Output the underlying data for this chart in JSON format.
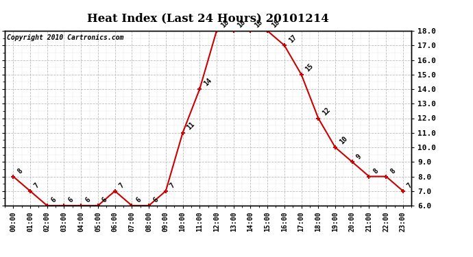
{
  "title": "Heat Index (Last 24 Hours) 20101214",
  "copyright": "Copyright 2010 Cartronics.com",
  "hours": [
    "00:00",
    "01:00",
    "02:00",
    "03:00",
    "04:00",
    "05:00",
    "06:00",
    "07:00",
    "08:00",
    "09:00",
    "10:00",
    "11:00",
    "12:00",
    "13:00",
    "14:00",
    "15:00",
    "16:00",
    "17:00",
    "18:00",
    "19:00",
    "20:00",
    "21:00",
    "22:00",
    "23:00"
  ],
  "values": [
    8,
    7,
    6,
    6,
    6,
    6,
    7,
    6,
    6,
    7,
    11,
    14,
    18,
    18,
    18,
    18,
    17,
    15,
    12,
    10,
    9,
    8,
    8,
    7
  ],
  "ylim": [
    6.0,
    18.0
  ],
  "yticks": [
    6.0,
    7.0,
    8.0,
    9.0,
    10.0,
    11.0,
    12.0,
    13.0,
    14.0,
    15.0,
    16.0,
    17.0,
    18.0
  ],
  "line_color": "#cc0000",
  "marker_color": "#cc0000",
  "bg_color": "white",
  "grid_color": "#bbbbbb",
  "title_fontsize": 12,
  "label_fontsize": 7,
  "annotation_fontsize": 7,
  "copyright_fontsize": 7
}
